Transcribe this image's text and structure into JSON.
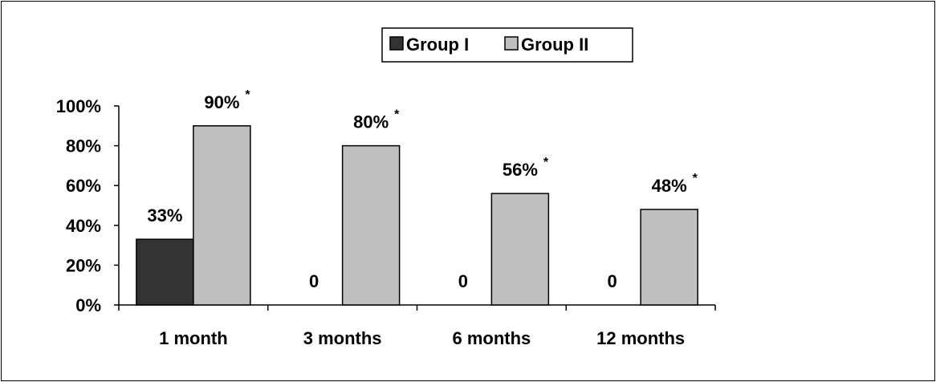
{
  "chart_data": {
    "type": "bar",
    "categories": [
      "1 month",
      "3 months",
      "6 months",
      "12 months"
    ],
    "series": [
      {
        "name": "Group I",
        "values": [
          33,
          0,
          0,
          0
        ],
        "color": "#333333"
      },
      {
        "name": "Group II",
        "values": [
          90,
          80,
          56,
          48
        ],
        "color": "#c0c0c0"
      }
    ],
    "data_labels": [
      {
        "series": "Group I",
        "texts": [
          "33%",
          "0",
          "0",
          "0"
        ],
        "stars": [
          "",
          "",
          "",
          ""
        ]
      },
      {
        "series": "Group II",
        "texts": [
          "90%",
          "80%",
          "56%",
          "48%"
        ],
        "stars": [
          "*",
          "*",
          "*",
          "*"
        ]
      }
    ],
    "yticks": [
      "0%",
      "20%",
      "40%",
      "60%",
      "80%",
      "100%"
    ],
    "ylim": [
      0,
      100
    ],
    "grid": false,
    "legend": "top-center",
    "title": "",
    "xlabel": "",
    "ylabel": ""
  }
}
